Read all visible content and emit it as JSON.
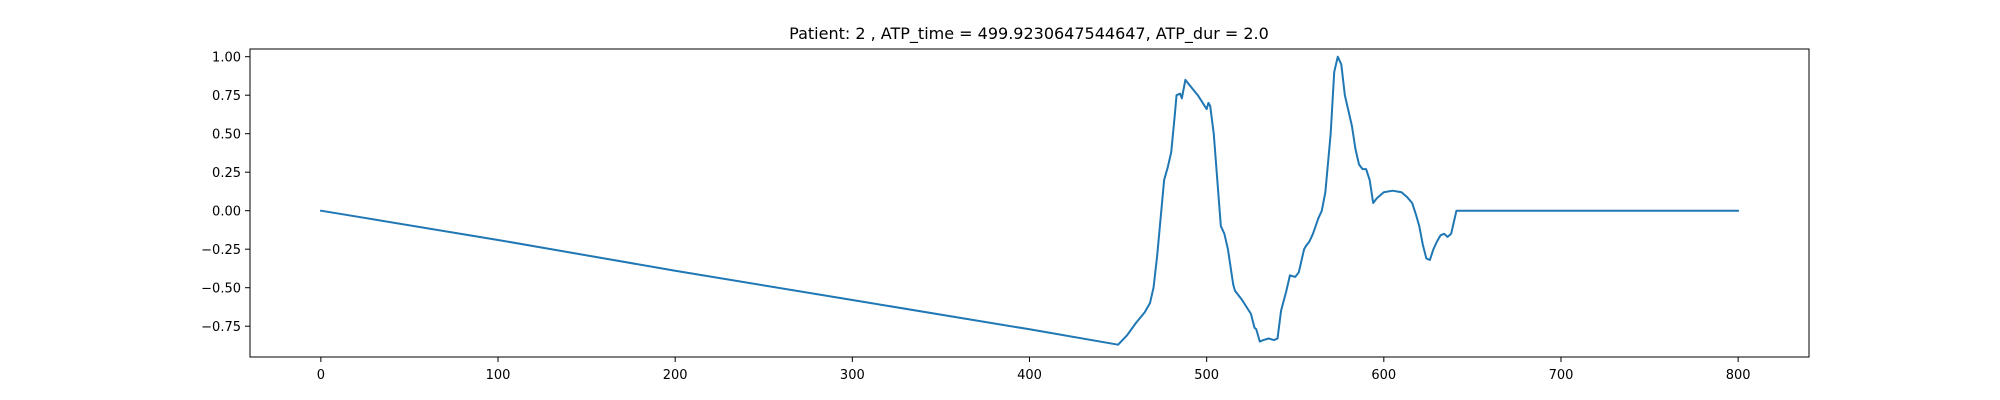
{
  "chart_data": {
    "type": "line",
    "title": "Patient: 2 , ATP_time = 499.9230647544647, ATP_dur = 2.0",
    "xlabel": "",
    "ylabel": "",
    "xlim": [
      -40,
      840
    ],
    "ylim": [
      -0.95,
      1.05
    ],
    "xticks": [
      0,
      100,
      200,
      300,
      400,
      500,
      600,
      700,
      800
    ],
    "yticks": [
      -0.75,
      -0.5,
      -0.25,
      0.0,
      0.25,
      0.5,
      0.75,
      1.0
    ],
    "xtick_labels": [
      "0",
      "100",
      "200",
      "300",
      "400",
      "500",
      "600",
      "700",
      "800"
    ],
    "ytick_labels": [
      "−0.75",
      "−0.50",
      "−0.25",
      "0.00",
      "0.25",
      "0.50",
      "0.75",
      "1.00"
    ],
    "grid": false,
    "line_color": "#1f77b4",
    "series": [
      {
        "x": [
          0,
          100,
          200,
          300,
          400,
          450,
          455,
          460,
          465,
          468,
          470,
          472,
          474,
          476,
          478,
          480,
          482,
          483,
          485,
          486,
          488,
          490,
          495,
          500,
          501,
          502,
          504,
          506,
          508,
          510,
          512,
          515,
          516,
          520,
          525,
          527,
          528,
          530,
          532,
          535,
          538,
          540,
          542,
          545,
          547,
          550,
          552,
          555,
          556,
          558,
          560,
          563,
          565,
          567,
          570,
          572,
          574,
          576,
          578,
          580,
          582,
          584,
          586,
          588,
          590,
          592,
          594,
          596,
          598,
          600,
          605,
          610,
          613,
          616,
          618,
          620,
          622,
          624,
          626,
          628,
          630,
          632,
          634,
          636,
          638,
          640,
          641,
          642,
          643,
          645,
          650,
          700,
          750,
          800
        ],
        "y": [
          0.0,
          -0.19,
          -0.39,
          -0.58,
          -0.77,
          -0.87,
          -0.81,
          -0.73,
          -0.66,
          -0.6,
          -0.5,
          -0.3,
          -0.05,
          0.2,
          0.28,
          0.38,
          0.62,
          0.75,
          0.76,
          0.73,
          0.85,
          0.82,
          0.75,
          0.66,
          0.7,
          0.68,
          0.5,
          0.2,
          -0.1,
          -0.15,
          -0.25,
          -0.48,
          -0.52,
          -0.58,
          -0.67,
          -0.76,
          -0.77,
          -0.85,
          -0.84,
          -0.83,
          -0.84,
          -0.83,
          -0.65,
          -0.52,
          -0.42,
          -0.43,
          -0.4,
          -0.25,
          -0.23,
          -0.2,
          -0.15,
          -0.05,
          0.0,
          0.12,
          0.5,
          0.9,
          1.0,
          0.95,
          0.75,
          0.65,
          0.55,
          0.4,
          0.3,
          0.27,
          0.27,
          0.2,
          0.05,
          0.08,
          0.1,
          0.12,
          0.13,
          0.12,
          0.09,
          0.05,
          -0.02,
          -0.1,
          -0.22,
          -0.31,
          -0.32,
          -0.25,
          -0.2,
          -0.16,
          -0.15,
          -0.17,
          -0.15,
          -0.05,
          0.0,
          0.0,
          0.0,
          0.0,
          0.0,
          0.0,
          0.0,
          0.0
        ]
      }
    ]
  }
}
